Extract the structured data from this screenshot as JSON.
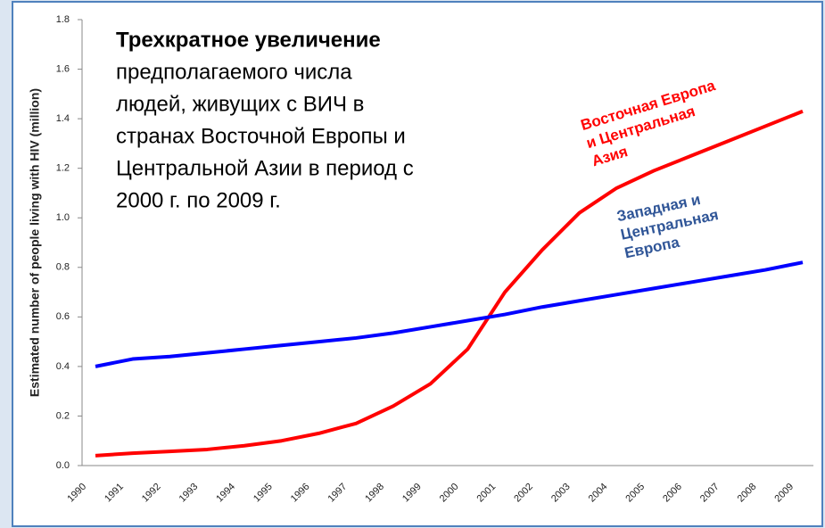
{
  "chart_data": {
    "type": "line",
    "ylabel": "Estimated number of people living with HIV (million)",
    "categories": [
      "1990",
      "1991",
      "1992",
      "1993",
      "1994",
      "1995",
      "1996",
      "1997",
      "1998",
      "1999",
      "2000",
      "2001",
      "2002",
      "2003",
      "2004",
      "2005",
      "2006",
      "2007",
      "2008",
      "2009"
    ],
    "series": [
      {
        "name": "Восточная Европа и Центральная Азия",
        "color": "#ff0000",
        "values": [
          0.04,
          0.05,
          0.057,
          0.065,
          0.08,
          0.1,
          0.13,
          0.17,
          0.24,
          0.33,
          0.47,
          0.7,
          0.87,
          1.02,
          1.12,
          1.19,
          1.25,
          1.31,
          1.37,
          1.43
        ]
      },
      {
        "name": "Западная и Центральная Европа",
        "color": "#0000ff",
        "values": [
          0.4,
          0.43,
          0.44,
          0.455,
          0.47,
          0.485,
          0.5,
          0.515,
          0.535,
          0.56,
          0.585,
          0.61,
          0.64,
          0.665,
          0.69,
          0.715,
          0.74,
          0.765,
          0.79,
          0.82
        ]
      }
    ],
    "ylim": [
      0,
      1.8
    ],
    "yticks": [
      {
        "value": 0,
        "label": "0.0"
      },
      {
        "value": 0.2,
        "label": "0.2"
      },
      {
        "value": 0.4,
        "label": "0.4"
      },
      {
        "value": 0.6,
        "label": "0.6"
      },
      {
        "value": 0.8,
        "label": "0.8"
      },
      {
        "value": 1,
        "label": "1.0"
      },
      {
        "value": 1.2,
        "label": "1.2"
      },
      {
        "value": 1.4,
        "label": "1.4"
      },
      {
        "value": 1.6,
        "label": "1.6"
      },
      {
        "value": 1.8,
        "label": "1.8"
      }
    ],
    "annotation": {
      "bold": "Трехкратное увеличение",
      "lines": [
        "предполагаемого числа",
        "людей, живущих с ВИЧ в",
        "странах Восточной Европы и",
        "Центральной Азии в период с",
        "2000 г. по 2009 г."
      ]
    },
    "series_labels": [
      [
        "Восточная Европа",
        "и Центральная",
        "Азия"
      ],
      [
        "Западная и",
        "Центральная",
        "Европа"
      ]
    ]
  }
}
